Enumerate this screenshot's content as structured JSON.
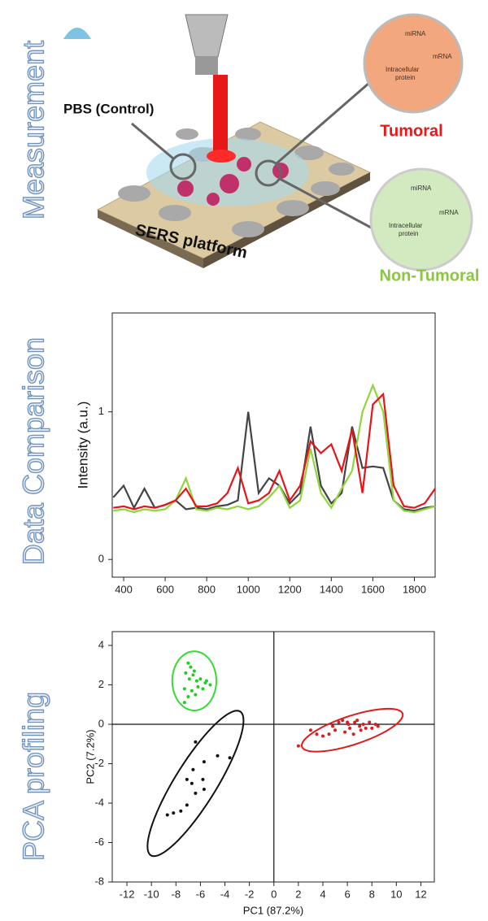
{
  "side_labels": [
    "Measurement",
    "Data Comparison",
    "PCA profiling"
  ],
  "illustration": {
    "pbs_label": "PBS (Control)",
    "platform_label": "SERS platform",
    "tumoral": {
      "label": "Tumoral",
      "mirna": "miRNA",
      "mrna": "mRNA",
      "protein_lines": [
        "Intracellular",
        "protein"
      ]
    },
    "non_tumoral": {
      "label": "Non-Tumoral",
      "mirna": "miRNA",
      "mrna": "mRNA",
      "protein_lines": [
        "Intracellular",
        "protein"
      ]
    }
  },
  "chart_data": [
    {
      "type": "line",
      "y_label": "Intensity (a.u.)",
      "x": [
        350,
        400,
        450,
        500,
        550,
        600,
        650,
        700,
        750,
        800,
        850,
        900,
        950,
        1000,
        1050,
        1100,
        1150,
        1200,
        1250,
        1300,
        1350,
        1400,
        1450,
        1500,
        1550,
        1600,
        1650,
        1700,
        1750,
        1800,
        1850,
        1900
      ],
      "series": [
        {
          "color": "#444444",
          "values": [
            0.42,
            0.5,
            0.35,
            0.48,
            0.35,
            0.37,
            0.4,
            0.34,
            0.35,
            0.34,
            0.36,
            0.37,
            0.4,
            1.0,
            0.45,
            0.55,
            0.5,
            0.38,
            0.45,
            0.9,
            0.5,
            0.38,
            0.45,
            0.9,
            0.62,
            0.63,
            0.62,
            0.4,
            0.34,
            0.33,
            0.35,
            0.36
          ]
        },
        {
          "color": "#8fd63a",
          "values": [
            0.33,
            0.34,
            0.32,
            0.34,
            0.33,
            0.34,
            0.4,
            0.55,
            0.34,
            0.33,
            0.35,
            0.34,
            0.36,
            0.34,
            0.36,
            0.42,
            0.5,
            0.35,
            0.4,
            0.75,
            0.45,
            0.35,
            0.48,
            0.6,
            1.0,
            1.18,
            1.0,
            0.4,
            0.33,
            0.32,
            0.34,
            0.36
          ]
        },
        {
          "color": "#e8141a",
          "values": [
            0.35,
            0.36,
            0.34,
            0.36,
            0.35,
            0.37,
            0.4,
            0.48,
            0.36,
            0.36,
            0.38,
            0.45,
            0.62,
            0.38,
            0.4,
            0.45,
            0.6,
            0.4,
            0.5,
            0.8,
            0.72,
            0.78,
            0.6,
            0.88,
            0.45,
            1.05,
            1.12,
            0.5,
            0.36,
            0.35,
            0.38,
            0.48
          ]
        }
      ],
      "xlim": [
        345,
        1900
      ],
      "xticks": [
        400,
        600,
        800,
        1000,
        1200,
        1400,
        1600,
        1800
      ],
      "ylim": [
        -0.12,
        1.67
      ],
      "yticks": [
        0,
        1
      ]
    },
    {
      "type": "scatter",
      "x_label": "PC1 (87.2%)",
      "y_label": "PC2 (7.2%)",
      "zero_lines": true,
      "series": [
        {
          "color": "#22cc22",
          "ellipse_color": "#33dd33",
          "x": [
            -7,
            -6.8,
            -6.5,
            -7.2,
            -6.6,
            -6.9,
            -6.3,
            -6,
            -5.6,
            -5.2,
            -6.2,
            -7.3,
            -6.7,
            -5.8,
            -7,
            -6.4,
            -7.3,
            -5.5
          ],
          "y": [
            3.1,
            2.9,
            2.7,
            2.6,
            2.5,
            2.3,
            2.2,
            2.3,
            2.1,
            2.0,
            1.9,
            1.8,
            1.7,
            1.8,
            1.4,
            1.5,
            1.1,
            2.2
          ],
          "ellipse": {
            "cx": -6.5,
            "cy": 2.2,
            "rx": 1.8,
            "ry": 1.5,
            "angle": 0
          }
        },
        {
          "color": "#111111",
          "ellipse_color": "#111111",
          "x": [
            -6.4,
            -5.7,
            -4.6,
            -3.6,
            -6.6,
            -7.1,
            -6.7,
            -5.8,
            -5.7,
            -6.4,
            -7.1,
            -7.6,
            -8.2,
            -8.7
          ],
          "y": [
            -0.9,
            -1.9,
            -1.6,
            -1.7,
            -2.3,
            -2.8,
            -3.0,
            -2.8,
            -3.3,
            -3.5,
            -4.1,
            -4.4,
            -4.5,
            -4.6
          ],
          "ellipse": {
            "cx": -6.4,
            "cy": -3.0,
            "rx": 5.2,
            "ry": 1.4,
            "angle": 43
          }
        },
        {
          "color": "#e01b1b",
          "ellipse_color": "#e01b1b",
          "x": [
            2,
            3,
            3.5,
            4,
            4.5,
            5,
            5.3,
            5.6,
            6,
            6.2,
            6.5,
            6.8,
            7,
            7.3,
            7.5,
            7.8,
            8,
            8.3,
            8.5,
            6.1,
            5.8,
            7.1,
            6.6,
            4.8
          ],
          "y": [
            -1.1,
            -0.3,
            -0.5,
            -0.6,
            -0.5,
            -0.3,
            0.1,
            0.2,
            0.1,
            -0.2,
            -0.5,
            0.2,
            -0.1,
            0.0,
            -0.2,
            0.1,
            -0.2,
            0.0,
            -0.1,
            0.0,
            -0.4,
            -0.3,
            0.1,
            -0.1
          ],
          "ellipse": {
            "cx": 6.4,
            "cy": -0.3,
            "rx": 4.2,
            "ry": 0.75,
            "angle": 11
          }
        }
      ],
      "xlim": [
        -13.2,
        13.1
      ],
      "xticks": [
        -12,
        -10,
        -8,
        -6,
        -4,
        -2,
        0,
        2,
        4,
        6,
        8,
        10,
        12
      ],
      "ylim": [
        -8,
        4.7
      ],
      "yticks": [
        -8,
        -6,
        -4,
        -2,
        0,
        2,
        4
      ]
    }
  ]
}
